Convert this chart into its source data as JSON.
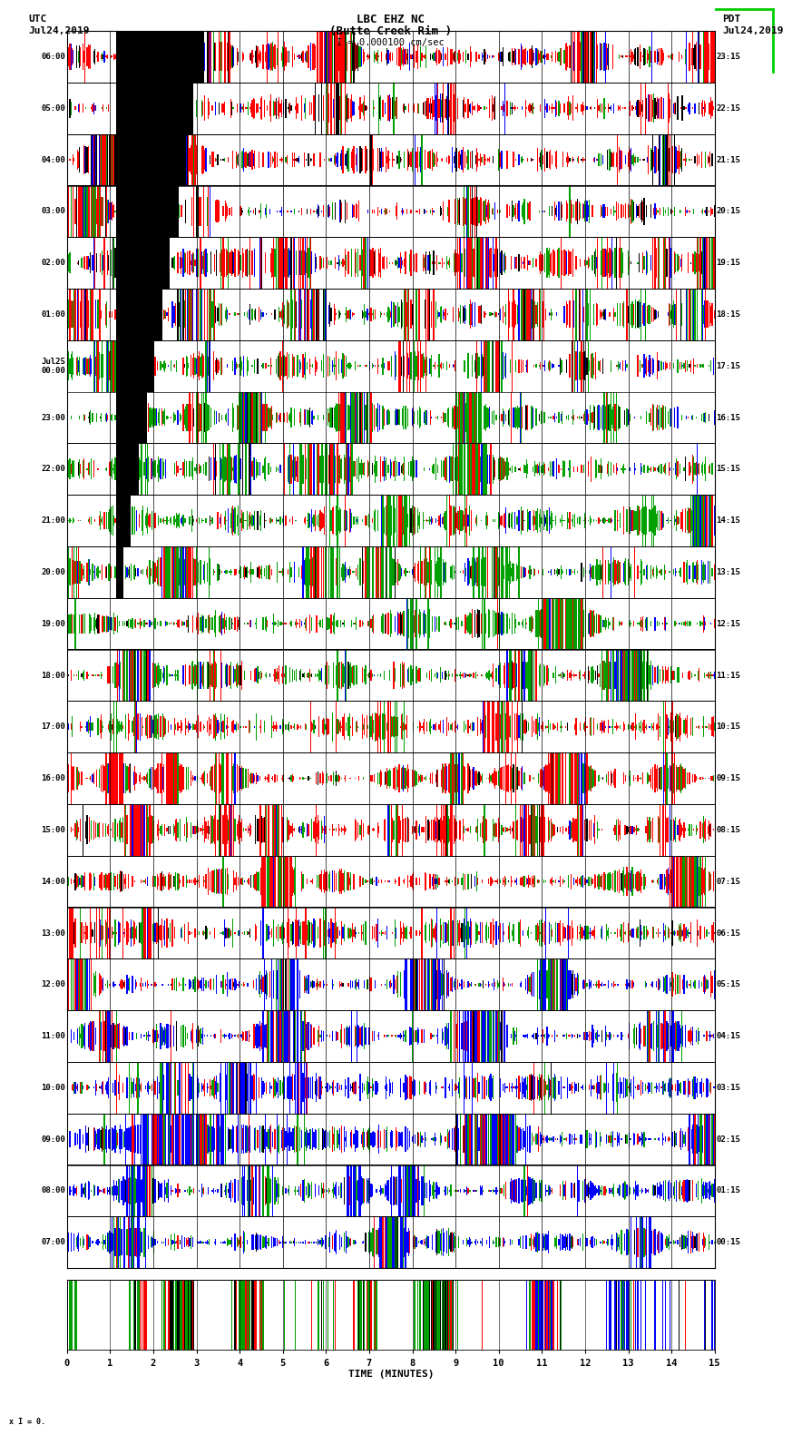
{
  "title_line1": "LBC EHZ NC",
  "title_line2": "(Butte Creek Rim )",
  "title_line3": "I = 0.000100 cm/sec",
  "left_label_line1": "UTC",
  "left_label_line2": "Jul24,2019",
  "right_label_line1": "PDT",
  "right_label_line2": "Jul24,2019",
  "utc_yticks": [
    "07:00",
    "08:00",
    "09:00",
    "10:00",
    "11:00",
    "12:00",
    "13:00",
    "14:00",
    "15:00",
    "16:00",
    "17:00",
    "18:00",
    "19:00",
    "20:00",
    "21:00",
    "22:00",
    "23:00",
    "Jul25\n00:00",
    "01:00",
    "02:00",
    "03:00",
    "04:00",
    "05:00",
    "06:00"
  ],
  "pdt_yticks": [
    "00:15",
    "01:15",
    "02:15",
    "03:15",
    "04:15",
    "05:15",
    "06:15",
    "07:15",
    "08:15",
    "09:15",
    "10:15",
    "11:15",
    "12:15",
    "13:15",
    "14:15",
    "15:15",
    "16:15",
    "17:15",
    "18:15",
    "19:15",
    "20:15",
    "21:15",
    "22:15",
    "23:15"
  ],
  "xticks": [
    0,
    1,
    2,
    3,
    4,
    5,
    6,
    7,
    8,
    9,
    10,
    11,
    12,
    13,
    14,
    15
  ],
  "xlabel": "TIME (MINUTES)",
  "fig_bg": "#ffffff",
  "plot_bg": "#ffffff",
  "n_hours": 24,
  "n_minutes": 15,
  "img_cols": 600,
  "rows_per_hour": 60,
  "seed": 42
}
